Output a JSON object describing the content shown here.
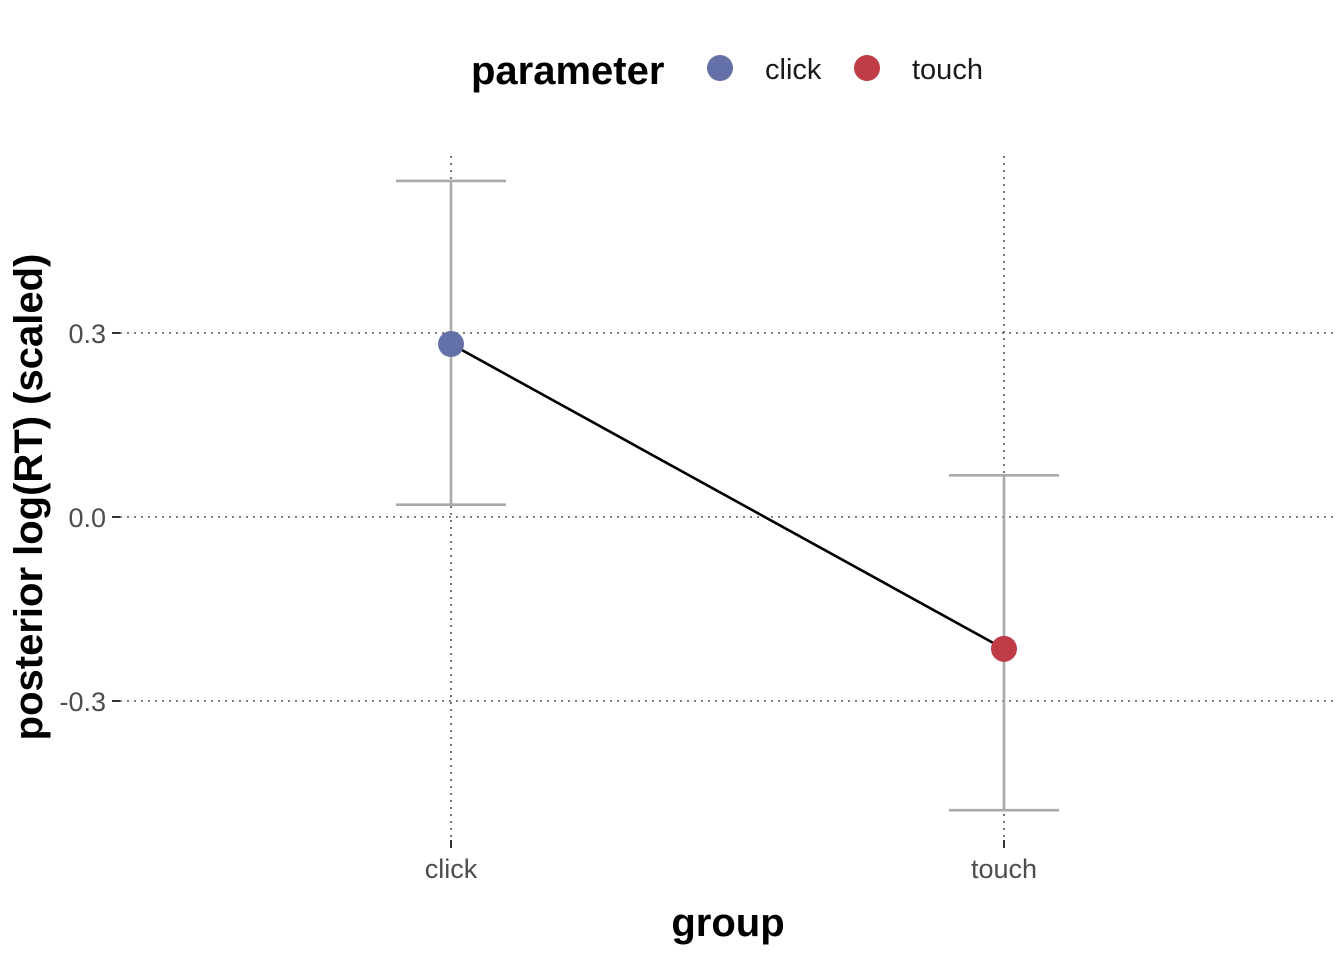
{
  "chart_data": {
    "type": "scatter",
    "xlabel": "group",
    "ylabel": "posterior log(RT) (scaled)",
    "categories": [
      "click",
      "touch"
    ],
    "ylim": [
      -0.5,
      0.58
    ],
    "yticks": [
      -0.3,
      0.0,
      0.3
    ],
    "ytick_labels": [
      "-0.3",
      "0.0",
      "0.3"
    ],
    "grid": "dotted",
    "legend": {
      "title": "parameter",
      "placement": "top",
      "entries": [
        {
          "label": "click",
          "color": "#6470A8"
        },
        {
          "label": "touch",
          "color": "#BF3B46"
        }
      ]
    },
    "series": [
      {
        "name": "click",
        "category": "click",
        "value": 0.282,
        "lower": 0.02,
        "upper": 0.548,
        "color": "#6470A8"
      },
      {
        "name": "touch",
        "category": "touch",
        "value": -0.215,
        "lower": -0.478,
        "upper": 0.068,
        "color": "#BF3B46"
      }
    ],
    "connector_color": "#000000",
    "errorbar_color": "#AAAAAA"
  }
}
